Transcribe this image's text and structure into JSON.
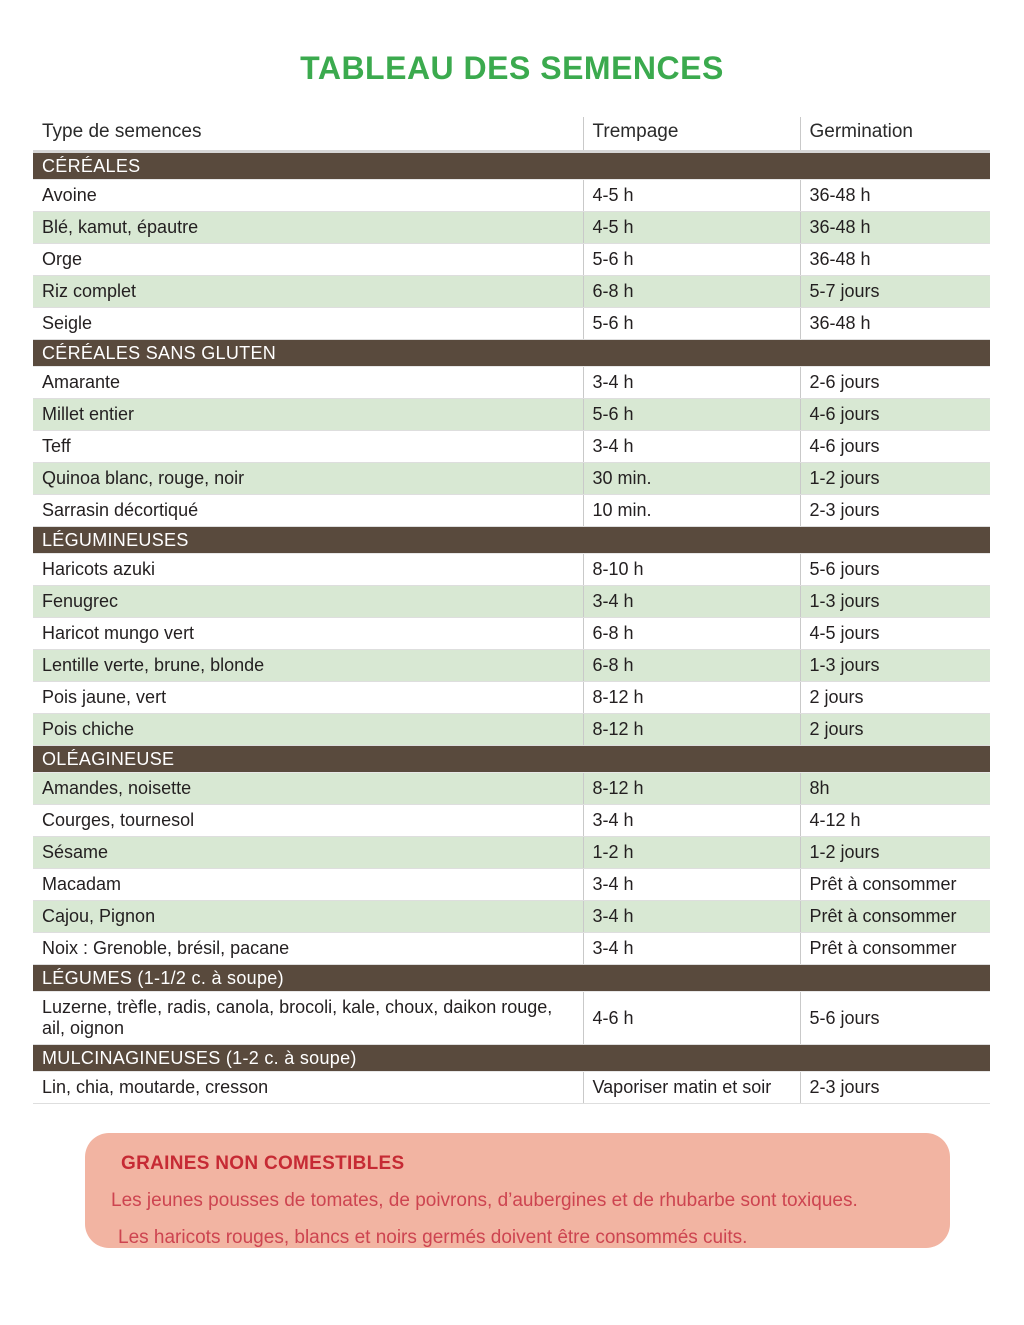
{
  "page": {
    "title": "TABLEAU DES SEMENCES"
  },
  "table": {
    "columns": [
      "Type de semences",
      "Trempage",
      "Germination"
    ],
    "sections": [
      {
        "label": "CÉRÉALES",
        "stripe_start": "white",
        "rows": [
          [
            "Avoine",
            "4-5 h",
            "36-48 h"
          ],
          [
            "Blé, kamut, épautre",
            "4-5 h",
            "36-48 h"
          ],
          [
            "Orge",
            "5-6 h",
            "36-48 h"
          ],
          [
            "Riz complet",
            "6-8 h",
            "5-7 jours"
          ],
          [
            "Seigle",
            "5-6 h",
            "36-48 h"
          ]
        ]
      },
      {
        "label": "CÉRÉALES SANS GLUTEN",
        "stripe_start": "white",
        "rows": [
          [
            "Amarante",
            "3-4 h",
            "2-6 jours"
          ],
          [
            "Millet entier",
            "5-6 h",
            "4-6 jours"
          ],
          [
            "Teff",
            "3-4 h",
            "4-6 jours"
          ],
          [
            "Quinoa blanc, rouge, noir",
            "30 min.",
            "1-2 jours"
          ],
          [
            "Sarrasin décortiqué",
            "10 min.",
            "2-3 jours"
          ]
        ]
      },
      {
        "label": "LÉGUMINEUSES",
        "stripe_start": "white",
        "rows": [
          [
            "Haricots azuki",
            "8-10 h",
            "5-6 jours"
          ],
          [
            "Fenugrec",
            "3-4 h",
            "1-3 jours"
          ],
          [
            "Haricot mungo vert",
            "6-8 h",
            "4-5 jours"
          ],
          [
            "Lentille verte, brune, blonde",
            "6-8 h",
            "1-3 jours"
          ],
          [
            "Pois jaune, vert",
            "8-12 h",
            "2 jours"
          ],
          [
            "Pois chiche",
            "8-12 h",
            "2 jours"
          ]
        ]
      },
      {
        "label": "OLÉAGINEUSE",
        "stripe_start": "green",
        "rows": [
          [
            "Amandes, noisette",
            "8-12 h",
            "8h"
          ],
          [
            "Courges, tournesol",
            "3-4 h",
            "4-12 h"
          ],
          [
            "Sésame",
            "1-2 h",
            "1-2 jours"
          ],
          [
            "Macadam",
            "3-4 h",
            "Prêt à consommer"
          ],
          [
            "Cajou, Pignon",
            "3-4 h",
            "Prêt à consommer"
          ],
          [
            "Noix : Grenoble, brésil, pacane",
            "3-4 h",
            "Prêt à consommer"
          ]
        ]
      },
      {
        "label": "LÉGUMES (1-1/2 c. à soupe)",
        "stripe_start": "white",
        "rows": [
          [
            "Luzerne, trèfle, radis, canola, brocoli, kale, choux, daikon rouge, ail, oignon",
            "4-6 h",
            "5-6 jours"
          ]
        ]
      },
      {
        "label": "MULCINAGINEUSES (1-2 c. à soupe)",
        "stripe_start": "white",
        "rows": [
          [
            "Lin, chia, moutarde, cresson",
            "Vaporiser matin et soir",
            "2-3 jours"
          ]
        ]
      }
    ]
  },
  "warning": {
    "title": "GRAINES NON COMESTIBLES",
    "lines": [
      "Les jeunes pousses de tomates, de poivrons, d’aubergines et de rhubarbe sont toxiques.",
      "Les haricots rouges, blancs et noirs germés doivent être consommés cuits."
    ]
  },
  "colors": {
    "title_green": "#3baa4e",
    "section_brown": "#594a3d",
    "row_green": "#d8e8d3",
    "warning_bg": "#f2b4a2",
    "warning_red": "#c62a34",
    "warning_text_red": "#cd4450"
  }
}
